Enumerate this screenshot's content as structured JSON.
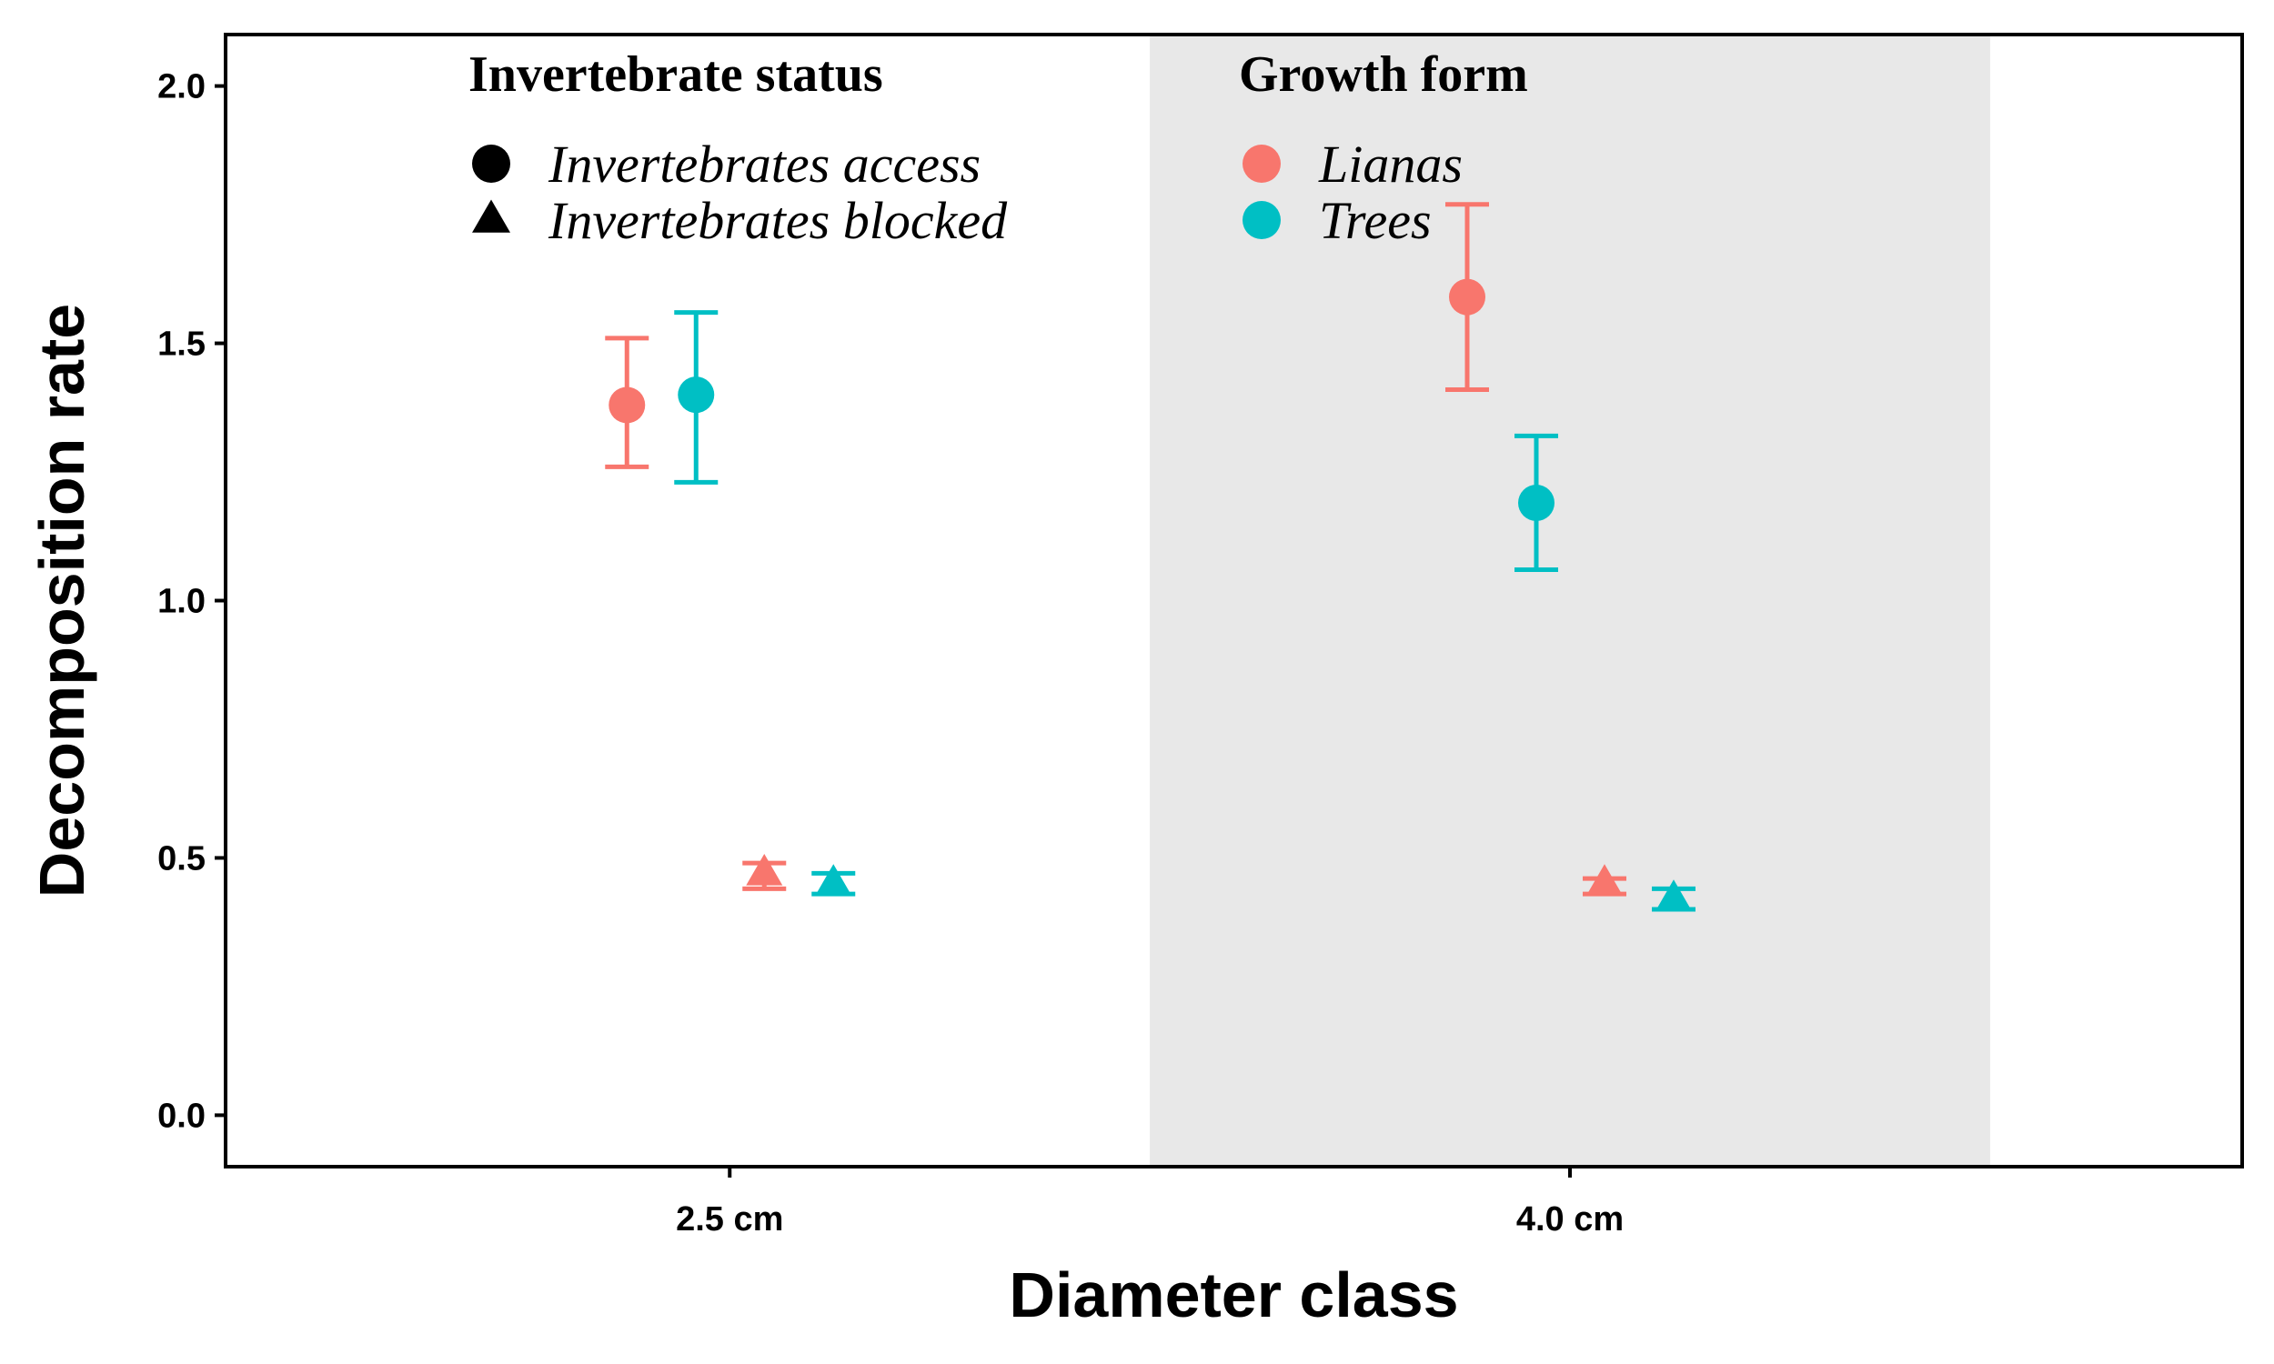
{
  "chart_data": {
    "type": "scatter",
    "title": "",
    "xlabel": "Diameter class",
    "ylabel": "Decomposition rate",
    "categories": [
      "2.5 cm",
      "4.0 cm"
    ],
    "ylim": [
      -0.1,
      2.1
    ],
    "yticks": [
      "0.0",
      "0.5",
      "1.0",
      "1.5",
      "2.0"
    ],
    "grid": false,
    "shaded_category": "4.0 cm",
    "shade_color": "#e8e8e8",
    "series": [
      {
        "growth_form": "Lianas",
        "invertebrate_status": "Invertebrates access",
        "shape": "circle",
        "color": "#F8766D",
        "points": [
          {
            "category": "2.5 cm",
            "y": 1.38,
            "ymin": 1.26,
            "ymax": 1.51
          },
          {
            "category": "4.0 cm",
            "y": 1.59,
            "ymin": 1.41,
            "ymax": 1.77
          }
        ]
      },
      {
        "growth_form": "Trees",
        "invertebrate_status": "Invertebrates access",
        "shape": "circle",
        "color": "#00BFC4",
        "points": [
          {
            "category": "2.5 cm",
            "y": 1.4,
            "ymin": 1.23,
            "ymax": 1.56
          },
          {
            "category": "4.0 cm",
            "y": 1.19,
            "ymin": 1.06,
            "ymax": 1.32
          }
        ]
      },
      {
        "growth_form": "Lianas",
        "invertebrate_status": "Invertebrates blocked",
        "shape": "triangle",
        "color": "#F8766D",
        "points": [
          {
            "category": "2.5 cm",
            "y": 0.47,
            "ymin": 0.44,
            "ymax": 0.49
          },
          {
            "category": "4.0 cm",
            "y": 0.45,
            "ymin": 0.43,
            "ymax": 0.46
          }
        ]
      },
      {
        "growth_form": "Trees",
        "invertebrate_status": "Invertebrates blocked",
        "shape": "triangle",
        "color": "#00BFC4",
        "points": [
          {
            "category": "2.5 cm",
            "y": 0.45,
            "ymin": 0.43,
            "ymax": 0.47
          },
          {
            "category": "4.0 cm",
            "y": 0.42,
            "ymin": 0.4,
            "ymax": 0.44
          }
        ]
      }
    ],
    "legends": [
      {
        "title": "Invertebrate status",
        "entries": [
          {
            "label": "Invertebrates access",
            "shape": "circle",
            "color": "#000000"
          },
          {
            "label": "Invertebrates blocked",
            "shape": "triangle",
            "color": "#000000"
          }
        ]
      },
      {
        "title": "Growth form",
        "entries": [
          {
            "label": "Lianas",
            "shape": "circle",
            "color": "#F8766D"
          },
          {
            "label": "Trees",
            "shape": "circle",
            "color": "#00BFC4"
          }
        ]
      }
    ],
    "legend_position": "top-inside"
  }
}
